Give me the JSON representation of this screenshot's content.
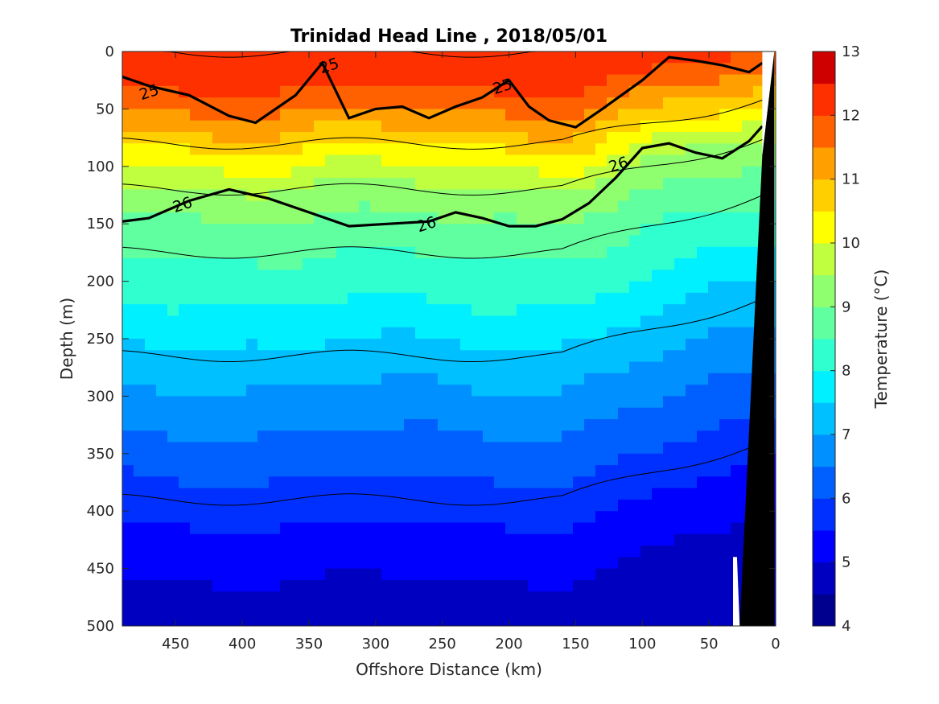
{
  "chart_data": {
    "type": "contourf",
    "title": "Trinidad Head Line , 2018/05/01",
    "xlabel": "Offshore Distance (km)",
    "ylabel": "Depth (m)",
    "xlim": [
      490,
      0
    ],
    "ylim": [
      0,
      500
    ],
    "x_reversed": true,
    "y_reversed": true,
    "x_ticks": [
      "450",
      "400",
      "350",
      "300",
      "250",
      "200",
      "150",
      "100",
      "50",
      "0"
    ],
    "y_ticks": [
      "0",
      "50",
      "100",
      "150",
      "200",
      "250",
      "300",
      "350",
      "400",
      "450",
      "500"
    ],
    "colorbar": {
      "label": "Temperature (°C)",
      "range": [
        4,
        13
      ],
      "ticks": [
        "4",
        "5",
        "6",
        "7",
        "8",
        "9",
        "10",
        "11",
        "12",
        "13"
      ],
      "colormap": "jet",
      "levels": [
        {
          "min": 4.0,
          "max": 4.5,
          "color": "#00008f"
        },
        {
          "min": 4.5,
          "max": 5.0,
          "color": "#0000c0"
        },
        {
          "min": 5.0,
          "max": 5.5,
          "color": "#0000ff"
        },
        {
          "min": 5.5,
          "max": 6.0,
          "color": "#0030ff"
        },
        {
          "min": 6.0,
          "max": 6.5,
          "color": "#0060ff"
        },
        {
          "min": 6.5,
          "max": 7.0,
          "color": "#0090ff"
        },
        {
          "min": 7.0,
          "max": 7.5,
          "color": "#00c0ff"
        },
        {
          "min": 7.5,
          "max": 8.0,
          "color": "#00f0ff"
        },
        {
          "min": 8.0,
          "max": 8.5,
          "color": "#30ffcf"
        },
        {
          "min": 8.5,
          "max": 9.0,
          "color": "#60ff9f"
        },
        {
          "min": 9.0,
          "max": 9.5,
          "color": "#90ff6f"
        },
        {
          "min": 9.5,
          "max": 10.0,
          "color": "#c0ff3f"
        },
        {
          "min": 10.0,
          "max": 10.5,
          "color": "#ffff00"
        },
        {
          "min": 10.5,
          "max": 11.0,
          "color": "#ffcf00"
        },
        {
          "min": 11.0,
          "max": 11.5,
          "color": "#ff9f00"
        },
        {
          "min": 11.5,
          "max": 12.0,
          "color": "#ff6000"
        },
        {
          "min": 12.0,
          "max": 12.5,
          "color": "#ff3000"
        },
        {
          "min": 12.5,
          "max": 13.0,
          "color": "#cf0000"
        },
        {
          "min": 13.0,
          "max": 13.5,
          "color": "#8f0000"
        }
      ]
    },
    "temperature_profile_offshore": {
      "depth_m": [
        0,
        30,
        60,
        90,
        120,
        150,
        180,
        220,
        260,
        300,
        340,
        380,
        420,
        460,
        500
      ],
      "temp_degC": [
        12.4,
        12.1,
        11.3,
        10.3,
        9.4,
        8.9,
        8.5,
        8.0,
        7.4,
        6.9,
        6.4,
        5.9,
        5.4,
        5.0,
        4.6
      ]
    },
    "density_contours": [
      {
        "label": "25",
        "x_km": [
          490,
          470,
          440,
          410,
          390,
          360,
          340,
          320,
          300,
          280,
          260,
          240,
          220,
          200,
          185,
          170,
          150,
          130,
          100,
          80,
          60,
          40,
          20,
          10
        ],
        "depth_m": [
          22,
          30,
          38,
          56,
          62,
          38,
          10,
          58,
          50,
          48,
          58,
          48,
          40,
          25,
          48,
          60,
          66,
          50,
          25,
          5,
          8,
          12,
          18,
          10
        ]
      },
      {
        "label": "26",
        "x_km": [
          490,
          470,
          440,
          410,
          380,
          350,
          320,
          290,
          260,
          240,
          220,
          200,
          180,
          160,
          140,
          120,
          100,
          80,
          60,
          40,
          20,
          10
        ],
        "depth_m": [
          148,
          145,
          130,
          120,
          128,
          140,
          152,
          150,
          148,
          140,
          145,
          152,
          152,
          146,
          132,
          110,
          84,
          80,
          88,
          93,
          78,
          65
        ]
      }
    ],
    "thin_contours_depth_m": [
      0,
      80,
      120,
      175,
      265,
      390
    ],
    "contour_labels": [
      "25",
      "25",
      "25",
      "26",
      "26",
      "26"
    ],
    "bathymetry_fill": "#000000",
    "grid": false
  }
}
